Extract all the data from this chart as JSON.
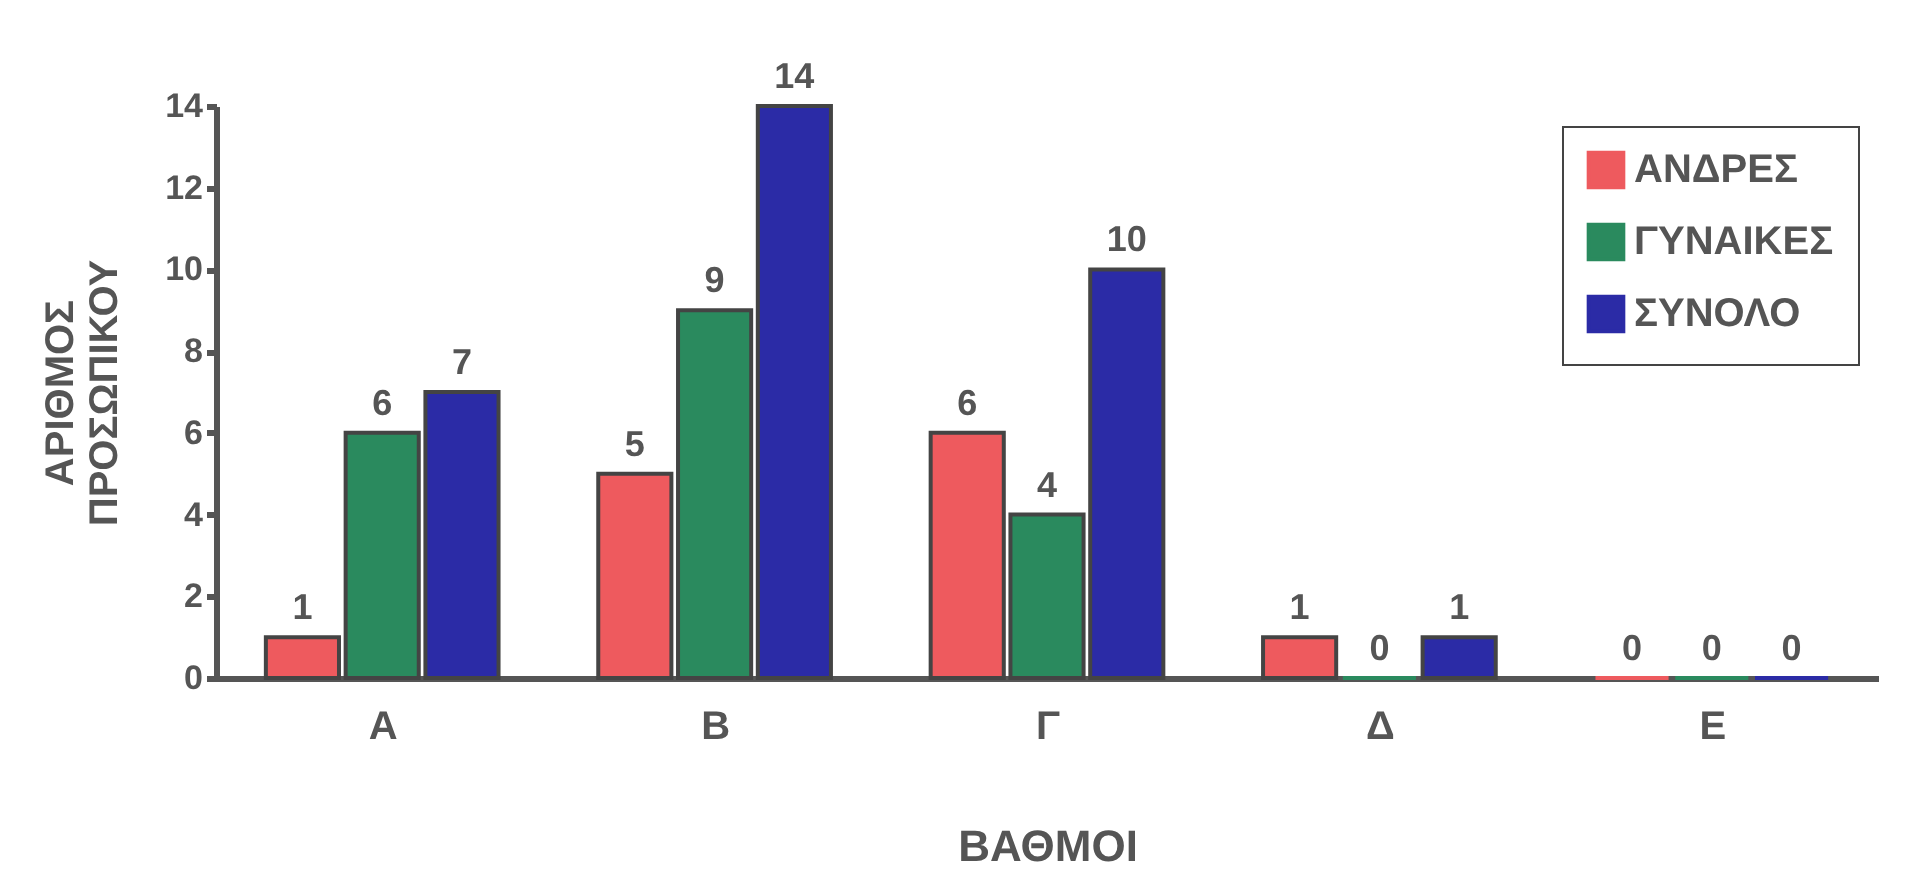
{
  "chart_data": {
    "type": "bar",
    "xlabel": "ΒΑΘΜΟΙ",
    "ylabel": "ΑΡΙΘΜΟΣ\nΠΡΟΣΩΠΙΚΟΥ",
    "categories": [
      "Α",
      "Β",
      "Γ",
      "Δ",
      "Ε"
    ],
    "series": [
      {
        "name": "ΑΝΔΡΕΣ",
        "color": "#ee5a5e",
        "values": [
          1,
          5,
          6,
          1,
          0
        ]
      },
      {
        "name": "ΓΥΝΑΙΚΕΣ",
        "color": "#2a8a5e",
        "values": [
          6,
          9,
          4,
          0,
          0
        ]
      },
      {
        "name": "ΣΥΝΟΛΟ",
        "color": "#2b2ba6",
        "values": [
          7,
          14,
          10,
          1,
          0
        ]
      }
    ],
    "ylim": [
      0,
      14
    ],
    "yticks": [
      0,
      2,
      4,
      6,
      8,
      10,
      12,
      14
    ],
    "grid": false,
    "legend": "top right",
    "data_labels": true
  }
}
